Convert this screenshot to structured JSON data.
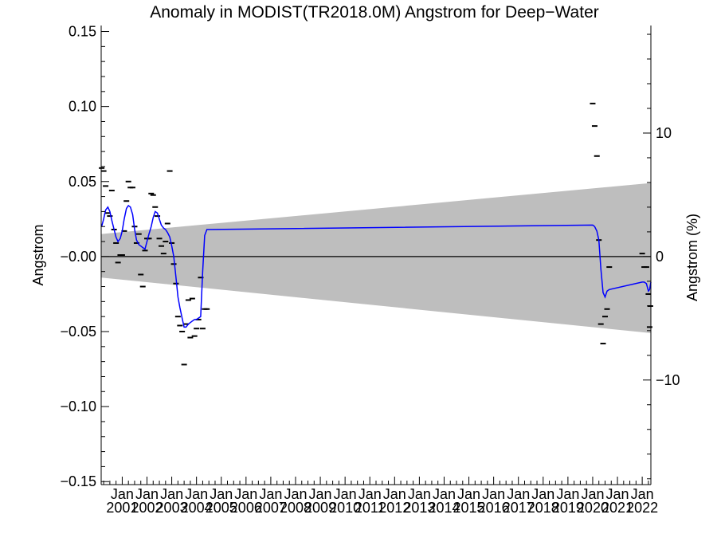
{
  "chart_data": {
    "type": "line",
    "title": "Anomaly in MODIST(TR2018.0M) Angstrom for Deep−Water",
    "ylabel": "Angstrom",
    "ylabel_right": "Angstrom (%)",
    "ylim": [
      -0.152,
      0.154
    ],
    "yticks": [
      {
        "value": 0.15,
        "label": "0.15"
      },
      {
        "value": 0.1,
        "label": "0.10"
      },
      {
        "value": 0.05,
        "label": "0.05"
      },
      {
        "value": 0.0,
        "label": "−0.00"
      },
      {
        "value": -0.05,
        "label": "−0.05"
      },
      {
        "value": -0.1,
        "label": "−0.10"
      },
      {
        "value": -0.15,
        "label": "−0.15"
      }
    ],
    "yticks_right": [
      {
        "value": 0.0823,
        "label": "10"
      },
      {
        "value": 0.0,
        "label": "0"
      },
      {
        "value": -0.0823,
        "label": "−10"
      }
    ],
    "xlim": [
      2000.15,
      2022.35
    ],
    "xticks": [
      {
        "value": 2001.0,
        "top": "Jan",
        "bottom": "2001"
      },
      {
        "value": 2002.0,
        "top": "Jan",
        "bottom": "2002"
      },
      {
        "value": 2003.0,
        "top": "Jan",
        "bottom": "2003"
      },
      {
        "value": 2004.0,
        "top": "Jan",
        "bottom": "2004"
      },
      {
        "value": 2005.0,
        "top": "Jan",
        "bottom": "2005"
      },
      {
        "value": 2006.0,
        "top": "Jan",
        "bottom": "2006"
      },
      {
        "value": 2007.0,
        "top": "Jan",
        "bottom": "2007"
      },
      {
        "value": 2008.0,
        "top": "Jan",
        "bottom": "2008"
      },
      {
        "value": 2009.0,
        "top": "Jan",
        "bottom": "2009"
      },
      {
        "value": 2010.0,
        "top": "Jan",
        "bottom": "2010"
      },
      {
        "value": 2011.0,
        "top": "Jan",
        "bottom": "2011"
      },
      {
        "value": 2012.0,
        "top": "Jan",
        "bottom": "2012"
      },
      {
        "value": 2013.0,
        "top": "Jan",
        "bottom": "2013"
      },
      {
        "value": 2014.0,
        "top": "Jan",
        "bottom": "2014"
      },
      {
        "value": 2015.0,
        "top": "Jan",
        "bottom": "2015"
      },
      {
        "value": 2016.0,
        "top": "Jan",
        "bottom": "2016"
      },
      {
        "value": 2017.0,
        "top": "Jan",
        "bottom": "2017"
      },
      {
        "value": 2018.0,
        "top": "Jan",
        "bottom": "2018"
      },
      {
        "value": 2019.0,
        "top": "Jan",
        "bottom": "2019"
      },
      {
        "value": 2020.0,
        "top": "Jan",
        "bottom": "2020"
      },
      {
        "value": 2021.0,
        "top": "Jan",
        "bottom": "2021"
      },
      {
        "value": 2022.0,
        "top": "Jan",
        "bottom": "2022"
      }
    ],
    "band": {
      "x": [
        2000.15,
        2022.35
      ],
      "upper": [
        0.015,
        0.049
      ],
      "lower": [
        -0.014,
        -0.051
      ],
      "color": "#bebebe"
    },
    "zero_line": 0.0,
    "series": [
      {
        "style": "markers",
        "marker": "dash",
        "color": "#000000",
        "points": [
          [
            2000.17,
            0.059
          ],
          [
            2000.25,
            0.057
          ],
          [
            2000.33,
            0.047
          ],
          [
            2000.42,
            0.029
          ],
          [
            2000.5,
            0.027
          ],
          [
            2000.58,
            0.044
          ],
          [
            2000.67,
            0.018
          ],
          [
            2000.75,
            0.009
          ],
          [
            2000.83,
            -0.004
          ],
          [
            2000.92,
            0.001
          ],
          [
            2001.0,
            0.001
          ],
          [
            2001.08,
            0.017
          ],
          [
            2001.17,
            0.037
          ],
          [
            2001.25,
            0.05
          ],
          [
            2001.33,
            0.046
          ],
          [
            2001.42,
            0.046
          ],
          [
            2001.5,
            0.02
          ],
          [
            2001.58,
            0.009
          ],
          [
            2001.67,
            0.015
          ],
          [
            2001.75,
            -0.012
          ],
          [
            2001.83,
            -0.02
          ],
          [
            2001.92,
            0.004
          ],
          [
            2002.0,
            0.012
          ],
          [
            2002.08,
            0.012
          ],
          [
            2002.17,
            0.042
          ],
          [
            2002.25,
            0.041
          ],
          [
            2002.33,
            0.033
          ],
          [
            2002.42,
            0.027
          ],
          [
            2002.5,
            0.012
          ],
          [
            2002.58,
            0.007
          ],
          [
            2002.67,
            0.002
          ],
          [
            2002.75,
            0.01
          ],
          [
            2002.83,
            0.022
          ],
          [
            2002.92,
            0.057
          ],
          [
            2003.0,
            0.009
          ],
          [
            2003.08,
            -0.005
          ],
          [
            2003.17,
            -0.018
          ],
          [
            2003.25,
            -0.04
          ],
          [
            2003.33,
            -0.046
          ],
          [
            2003.42,
            -0.05
          ],
          [
            2003.5,
            -0.072
          ],
          [
            2003.58,
            -0.045
          ],
          [
            2003.67,
            -0.029
          ],
          [
            2003.75,
            -0.054
          ],
          [
            2003.83,
            -0.028
          ],
          [
            2003.92,
            -0.053
          ],
          [
            2004.0,
            -0.048
          ],
          [
            2004.08,
            -0.042
          ],
          [
            2004.17,
            -0.014
          ],
          [
            2004.25,
            -0.048
          ],
          [
            2004.33,
            -0.035
          ],
          [
            2004.42,
            -0.035
          ],
          [
            2020.0,
            0.102
          ],
          [
            2020.08,
            0.087
          ],
          [
            2020.17,
            0.067
          ],
          [
            2020.25,
            0.011
          ],
          [
            2020.33,
            -0.045
          ],
          [
            2020.42,
            -0.058
          ],
          [
            2020.5,
            -0.04
          ],
          [
            2020.58,
            -0.035
          ],
          [
            2020.67,
            -0.007
          ],
          [
            2022.0,
            0.002
          ],
          [
            2022.08,
            -0.007
          ],
          [
            2022.17,
            -0.007
          ],
          [
            2022.25,
            -0.025
          ],
          [
            2022.3,
            -0.047
          ],
          [
            2022.33,
            -0.033
          ]
        ]
      },
      {
        "style": "line",
        "color": "#0000ff",
        "points": [
          [
            2000.17,
            0.02
          ],
          [
            2000.25,
            0.025
          ],
          [
            2000.33,
            0.031
          ],
          [
            2000.42,
            0.033
          ],
          [
            2000.5,
            0.03
          ],
          [
            2000.58,
            0.024
          ],
          [
            2000.67,
            0.018
          ],
          [
            2000.75,
            0.013
          ],
          [
            2000.83,
            0.01
          ],
          [
            2000.92,
            0.012
          ],
          [
            2001.0,
            0.017
          ],
          [
            2001.08,
            0.025
          ],
          [
            2001.17,
            0.032
          ],
          [
            2001.25,
            0.034
          ],
          [
            2001.33,
            0.033
          ],
          [
            2001.42,
            0.028
          ],
          [
            2001.5,
            0.018
          ],
          [
            2001.58,
            0.011
          ],
          [
            2001.67,
            0.008
          ],
          [
            2001.75,
            0.007
          ],
          [
            2001.83,
            0.006
          ],
          [
            2001.92,
            0.005
          ],
          [
            2002.0,
            0.01
          ],
          [
            2002.08,
            0.015
          ],
          [
            2002.17,
            0.02
          ],
          [
            2002.25,
            0.026
          ],
          [
            2002.33,
            0.03
          ],
          [
            2002.42,
            0.029
          ],
          [
            2002.5,
            0.025
          ],
          [
            2002.58,
            0.021
          ],
          [
            2002.67,
            0.019
          ],
          [
            2002.75,
            0.018
          ],
          [
            2002.83,
            0.016
          ],
          [
            2002.92,
            0.013
          ],
          [
            2003.0,
            0.007
          ],
          [
            2003.08,
            0.0
          ],
          [
            2003.17,
            -0.014
          ],
          [
            2003.25,
            -0.027
          ],
          [
            2003.33,
            -0.034
          ],
          [
            2003.42,
            -0.041
          ],
          [
            2003.5,
            -0.047
          ],
          [
            2003.58,
            -0.047
          ],
          [
            2003.67,
            -0.045
          ],
          [
            2003.75,
            -0.044
          ],
          [
            2003.83,
            -0.043
          ],
          [
            2003.92,
            -0.042
          ],
          [
            2004.0,
            -0.042
          ],
          [
            2004.08,
            -0.041
          ],
          [
            2004.17,
            -0.04
          ],
          [
            2004.25,
            -0.01
          ],
          [
            2004.33,
            0.014
          ],
          [
            2004.42,
            0.018
          ],
          [
            2020.0,
            0.021
          ],
          [
            2020.08,
            0.02
          ],
          [
            2020.17,
            0.017
          ],
          [
            2020.25,
            0.011
          ],
          [
            2020.33,
            -0.008
          ],
          [
            2020.42,
            -0.024
          ],
          [
            2020.5,
            -0.027
          ],
          [
            2020.58,
            -0.023
          ],
          [
            2020.67,
            -0.022
          ],
          [
            2022.0,
            -0.017
          ],
          [
            2022.08,
            -0.017
          ],
          [
            2022.17,
            -0.018
          ],
          [
            2022.25,
            -0.023
          ],
          [
            2022.3,
            -0.022
          ],
          [
            2022.35,
            -0.017
          ]
        ]
      }
    ],
    "grid": false
  }
}
